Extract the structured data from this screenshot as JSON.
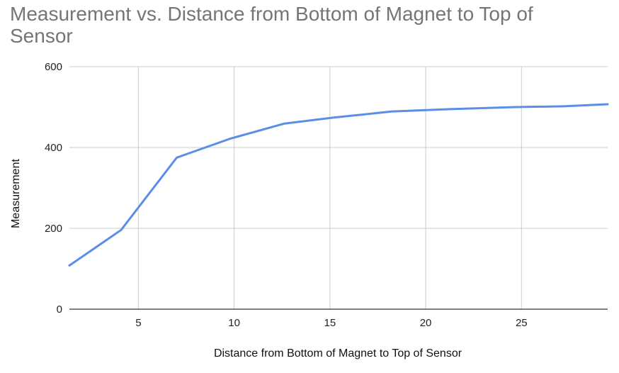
{
  "chart_data": {
    "type": "line",
    "title": "Measurement vs. Distance from Bottom of Magnet to Top of Sensor",
    "xlabel": "Distance from Bottom of Magnet to Top of Sensor",
    "ylabel": "Measurement",
    "xlim": [
      1.4,
      29.5
    ],
    "ylim": [
      0,
      600
    ],
    "x_ticks": [
      5,
      10,
      15,
      20,
      25
    ],
    "y_ticks": [
      0,
      200,
      400,
      600
    ],
    "x_tick_labels": [
      "5",
      "10",
      "15",
      "20",
      "25"
    ],
    "y_tick_labels": [
      "0",
      "200",
      "400",
      "600"
    ],
    "grid": true,
    "legend": "none",
    "line_color": "#5b8ee6",
    "grid_color": "#cccccc",
    "axis_color": "#333333",
    "series": [
      {
        "x": [
          1.4,
          4.1,
          7.0,
          9.8,
          12.6,
          15.2,
          18.2,
          21.3,
          24.7,
          27.2,
          29.5
        ],
        "values": [
          108,
          196,
          375,
          422,
          459,
          474,
          489,
          495,
          500,
          502,
          507
        ]
      }
    ]
  }
}
